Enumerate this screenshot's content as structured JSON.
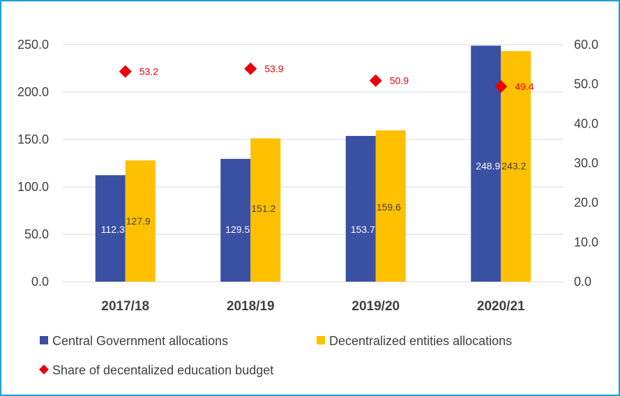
{
  "colors": {
    "central": "#3a50a3",
    "decentralized": "#ffc000",
    "share": "#e8000d",
    "grid": "#d9d9d9",
    "frame": "#1a9fd9",
    "text": "#404040"
  },
  "chart_data": {
    "type": "bar",
    "title": "",
    "categories": [
      "2017/18",
      "2018/19",
      "2019/20",
      "2020/21"
    ],
    "series": [
      {
        "name": "Central Government allocations",
        "type": "bar",
        "axis": "left",
        "values": [
          112.3,
          129.5,
          153.7,
          248.9
        ],
        "labels": [
          "112.3",
          "129.5",
          "153.7",
          "248.9"
        ]
      },
      {
        "name": "Decentralized entities allocations",
        "type": "bar",
        "axis": "left",
        "values": [
          127.9,
          151.2,
          159.6,
          243.2
        ],
        "labels": [
          "127.9",
          "151.2",
          "159.6",
          "243.2"
        ]
      },
      {
        "name": "Share of decentalized education budget",
        "type": "scatter",
        "marker": "diamond",
        "axis": "right",
        "values": [
          53.2,
          53.9,
          50.9,
          49.4
        ],
        "labels": [
          "53.2",
          "53.9",
          "50.9",
          "49.4"
        ]
      }
    ],
    "y_left": {
      "ylim": [
        0,
        250
      ],
      "ticks": [
        "0.0",
        "50.0",
        "100.0",
        "150.0",
        "200.0",
        "250.0"
      ]
    },
    "y_right": {
      "ylim": [
        0,
        60
      ],
      "ticks": [
        "0.0",
        "10.0",
        "20.0",
        "30.0",
        "40.0",
        "50.0",
        "60.0"
      ]
    },
    "grid": true,
    "legend": "bottom"
  }
}
